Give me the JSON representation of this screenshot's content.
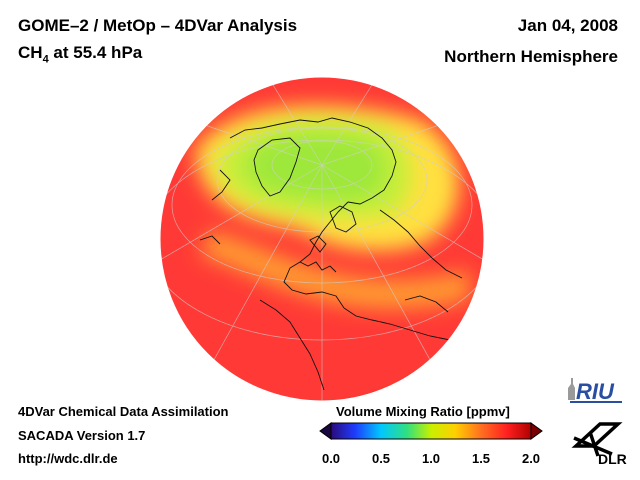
{
  "header": {
    "title_line1": "GOME–2 / MetOp – 4DVar Analysis",
    "species": "CH",
    "species_sub": "4",
    "level": " at 55.4 hPa",
    "date": "Jan 04, 2008",
    "region": "Northern Hemisphere"
  },
  "footer": {
    "line1": "4DVar Chemical Data Assimilation",
    "line2": "SACADA Version 1.7",
    "line3": "http://wdc.dlr.de"
  },
  "colorbar": {
    "title": "Volume Mixing Ratio [ppmv]",
    "ticks": [
      "0.0",
      "0.5",
      "1.0",
      "1.5",
      "2.0"
    ],
    "range": [
      0.0,
      2.0
    ],
    "colors": [
      "#2a0a7a",
      "#1e3cff",
      "#00c8ff",
      "#30e080",
      "#c8f000",
      "#ffd000",
      "#ff7020",
      "#ff2020",
      "#b00000"
    ]
  },
  "logos": {
    "riu": "RIU",
    "dlr": "DLR"
  },
  "map": {
    "projection": "orthographic",
    "background_color": "#ff3a36",
    "low_region_color": "#a8e83a",
    "mid_region_color": "#ffd830"
  }
}
